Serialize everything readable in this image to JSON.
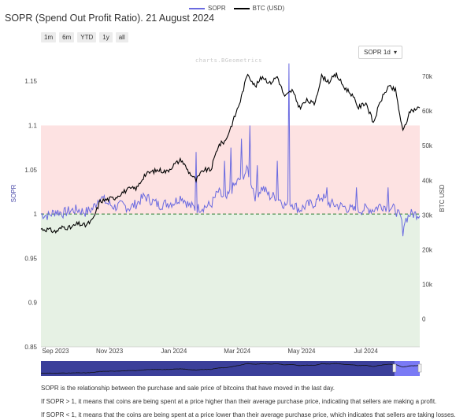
{
  "title": "SOPR (Spend Out Profit Ratio). 21 August 2024",
  "legend": [
    {
      "name": "SOPR",
      "color": "#6a6ae0"
    },
    {
      "name": "BTC (USD)",
      "color": "#000000"
    }
  ],
  "range_buttons": [
    "1m",
    "6m",
    "YTD",
    "1y",
    "all"
  ],
  "select": {
    "value": "SOPR 1d"
  },
  "watermark": "charts.BGeometrics",
  "description": {
    "line1": "SOPR is the relationship between the purchase and sale price of bitcoins that have moved in the last day.",
    "line2": "If SOPR > 1, it means that coins are being spent at a price higher than their average purchase price, indicating that sellers are making a profit.",
    "line3": "If SOPR < 1, it means that the coins are being spent at a price lower than their average purchase price, which indicates that sellers are taking losses."
  },
  "colors": {
    "sopr": "#6a6ae0",
    "btc": "#000000",
    "profit_zone": "#fde2e2",
    "loss_zone": "#e6f1e4",
    "baseline": "#2e7d32",
    "navigator": "#3b3f9a",
    "nav_selected": "#7a7af5"
  },
  "chart_data": {
    "type": "line",
    "title": "SOPR (Spend Out Profit Ratio). 21 August 2024",
    "xlabel": "",
    "ylabel": "SOPR",
    "ylabel_right": "BTC USD",
    "x_ticks": [
      "Sep 2023",
      "Nov 2023",
      "Jan 2024",
      "Mar 2024",
      "May 2024",
      "Jul 2024"
    ],
    "y_left": {
      "range": [
        0.85,
        1.175
      ],
      "ticks": [
        "0.85",
        "0.9",
        "0.95",
        "1",
        "1.05",
        "1.1",
        "1.15"
      ]
    },
    "y_right": {
      "range": [
        -8000,
        75000
      ],
      "ticks": [
        "0",
        "10k",
        "20k",
        "30k",
        "40k",
        "50k",
        "60k",
        "70k"
      ]
    },
    "bands": [
      {
        "from": 1.0,
        "to": 1.1,
        "label": "profit"
      },
      {
        "from": 0.85,
        "to": 1.0,
        "label": "loss"
      }
    ],
    "baseline": 1.0,
    "x_range": [
      "2023-08-28",
      "2024-08-21"
    ],
    "series": [
      {
        "name": "SOPR",
        "axis": "left",
        "data": [
          [
            "2023-08-28",
            1.0
          ],
          [
            "2023-09-04",
            0.998
          ],
          [
            "2023-09-11",
            1.003
          ],
          [
            "2023-09-18",
            1.001
          ],
          [
            "2023-09-25",
            1.004
          ],
          [
            "2023-10-02",
            1.005
          ],
          [
            "2023-10-09",
            1.002
          ],
          [
            "2023-10-16",
            1.006
          ],
          [
            "2023-10-23",
            1.02
          ],
          [
            "2023-10-30",
            1.012
          ],
          [
            "2023-11-06",
            1.008
          ],
          [
            "2023-11-13",
            1.01
          ],
          [
            "2023-11-20",
            1.007
          ],
          [
            "2023-11-27",
            1.012
          ],
          [
            "2023-12-04",
            1.02
          ],
          [
            "2023-12-11",
            1.015
          ],
          [
            "2023-12-18",
            1.01
          ],
          [
            "2023-12-25",
            1.012
          ],
          [
            "2024-01-01",
            1.013
          ],
          [
            "2024-01-08",
            1.02
          ],
          [
            "2024-01-15",
            1.01
          ],
          [
            "2024-01-22",
            1.006
          ],
          [
            "2024-01-29",
            1.008
          ],
          [
            "2024-02-05",
            1.01
          ],
          [
            "2024-02-12",
            1.025
          ],
          [
            "2024-02-19",
            1.015
          ],
          [
            "2024-02-26",
            1.03
          ],
          [
            "2024-03-04",
            1.04
          ],
          [
            "2024-03-11",
            1.05
          ],
          [
            "2024-03-18",
            1.02
          ],
          [
            "2024-03-25",
            1.03
          ],
          [
            "2024-04-01",
            1.02
          ],
          [
            "2024-04-08",
            1.02
          ],
          [
            "2024-04-15",
            1.01
          ],
          [
            "2024-04-22",
            1.012
          ],
          [
            "2024-04-29",
            1.005
          ],
          [
            "2024-05-06",
            1.01
          ],
          [
            "2024-05-13",
            1.012
          ],
          [
            "2024-05-20",
            1.02
          ],
          [
            "2024-05-27",
            1.012
          ],
          [
            "2024-06-03",
            1.01
          ],
          [
            "2024-06-10",
            1.008
          ],
          [
            "2024-06-17",
            1.005
          ],
          [
            "2024-06-24",
            1.004
          ],
          [
            "2024-07-01",
            1.006
          ],
          [
            "2024-07-08",
            1.005
          ],
          [
            "2024-07-15",
            1.01
          ],
          [
            "2024-07-22",
            1.008
          ],
          [
            "2024-07-29",
            1.005
          ],
          [
            "2024-08-05",
            0.99
          ],
          [
            "2024-08-12",
            1.0
          ],
          [
            "2024-08-21",
            1.0
          ]
        ],
        "spikes": [
          [
            "2024-01-22",
            1.07
          ],
          [
            "2024-02-18",
            1.06
          ],
          [
            "2024-02-24",
            1.075
          ],
          [
            "2024-03-05",
            1.085
          ],
          [
            "2024-03-13",
            1.1
          ],
          [
            "2024-04-19",
            1.17
          ],
          [
            "2024-03-20",
            1.055
          ],
          [
            "2024-04-08",
            1.06
          ],
          [
            "2024-05-25",
            1.03
          ],
          [
            "2024-06-22",
            1.03
          ],
          [
            "2024-07-22",
            1.03
          ],
          [
            "2024-08-05",
            0.975
          ]
        ]
      },
      {
        "name": "BTC (USD)",
        "axis": "right",
        "data": [
          [
            "2023-08-28",
            26000
          ],
          [
            "2023-09-04",
            25800
          ],
          [
            "2023-09-11",
            25200
          ],
          [
            "2023-09-18",
            26600
          ],
          [
            "2023-09-25",
            26300
          ],
          [
            "2023-10-02",
            27500
          ],
          [
            "2023-10-09",
            27000
          ],
          [
            "2023-10-16",
            28500
          ],
          [
            "2023-10-23",
            34000
          ],
          [
            "2023-10-30",
            34500
          ],
          [
            "2023-11-06",
            35000
          ],
          [
            "2023-11-13",
            36500
          ],
          [
            "2023-11-20",
            37500
          ],
          [
            "2023-11-27",
            37800
          ],
          [
            "2023-12-04",
            41500
          ],
          [
            "2023-12-11",
            42500
          ],
          [
            "2023-12-18",
            43000
          ],
          [
            "2023-12-25",
            42500
          ],
          [
            "2024-01-01",
            44500
          ],
          [
            "2024-01-08",
            46000
          ],
          [
            "2024-01-15",
            42500
          ],
          [
            "2024-01-22",
            40000
          ],
          [
            "2024-01-29",
            43000
          ],
          [
            "2024-02-05",
            43000
          ],
          [
            "2024-02-12",
            50000
          ],
          [
            "2024-02-19",
            51500
          ],
          [
            "2024-02-26",
            57000
          ],
          [
            "2024-03-04",
            63000
          ],
          [
            "2024-03-11",
            71000
          ],
          [
            "2024-03-18",
            67000
          ],
          [
            "2024-03-25",
            70000
          ],
          [
            "2024-04-01",
            68000
          ],
          [
            "2024-04-08",
            70000
          ],
          [
            "2024-04-15",
            64000
          ],
          [
            "2024-04-22",
            66000
          ],
          [
            "2024-04-29",
            61000
          ],
          [
            "2024-05-06",
            63000
          ],
          [
            "2024-05-13",
            62000
          ],
          [
            "2024-05-20",
            70000
          ],
          [
            "2024-05-27",
            68500
          ],
          [
            "2024-06-03",
            70500
          ],
          [
            "2024-06-10",
            67000
          ],
          [
            "2024-06-17",
            65000
          ],
          [
            "2024-06-24",
            61000
          ],
          [
            "2024-07-01",
            62500
          ],
          [
            "2024-07-08",
            56500
          ],
          [
            "2024-07-15",
            63000
          ],
          [
            "2024-07-22",
            67000
          ],
          [
            "2024-07-29",
            66000
          ],
          [
            "2024-08-05",
            54000
          ],
          [
            "2024-08-12",
            60000
          ],
          [
            "2024-08-21",
            61000
          ]
        ]
      }
    ],
    "legend": "top-center",
    "grid": false
  }
}
